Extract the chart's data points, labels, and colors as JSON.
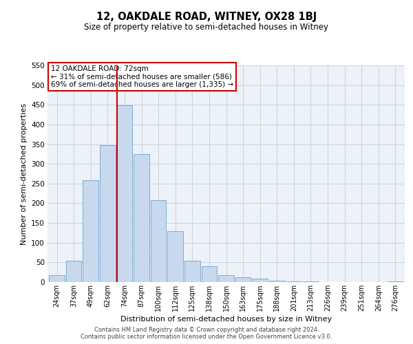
{
  "title": "12, OAKDALE ROAD, WITNEY, OX28 1BJ",
  "subtitle": "Size of property relative to semi-detached houses in Witney",
  "xlabel": "Distribution of semi-detached houses by size in Witney",
  "ylabel": "Number of semi-detached properties",
  "bar_labels": [
    "24sqm",
    "37sqm",
    "49sqm",
    "62sqm",
    "74sqm",
    "87sqm",
    "100sqm",
    "112sqm",
    "125sqm",
    "138sqm",
    "150sqm",
    "163sqm",
    "175sqm",
    "188sqm",
    "201sqm",
    "213sqm",
    "226sqm",
    "239sqm",
    "251sqm",
    "264sqm",
    "276sqm"
  ],
  "bar_values": [
    18,
    55,
    258,
    347,
    448,
    325,
    207,
    130,
    55,
    41,
    18,
    13,
    8,
    3,
    2,
    1,
    0,
    0,
    0,
    0,
    1
  ],
  "bar_color": "#c8d9ee",
  "bar_edge_color": "#7aadd4",
  "property_line_color": "#cc0000",
  "property_line_index": 4,
  "annotation_title": "12 OAKDALE ROAD: 72sqm",
  "annotation_line1": "← 31% of semi-detached houses are smaller (586)",
  "annotation_line2": "69% of semi-detached houses are larger (1,335) →",
  "annotation_box_color": "#cc0000",
  "ylim": [
    0,
    550
  ],
  "yticks": [
    0,
    50,
    100,
    150,
    200,
    250,
    300,
    350,
    400,
    450,
    500,
    550
  ],
  "grid_color": "#c8d4e3",
  "bg_color": "#edf1f8",
  "footer_line1": "Contains HM Land Registry data © Crown copyright and database right 2024.",
  "footer_line2": "Contains public sector information licensed under the Open Government Licence v3.0."
}
